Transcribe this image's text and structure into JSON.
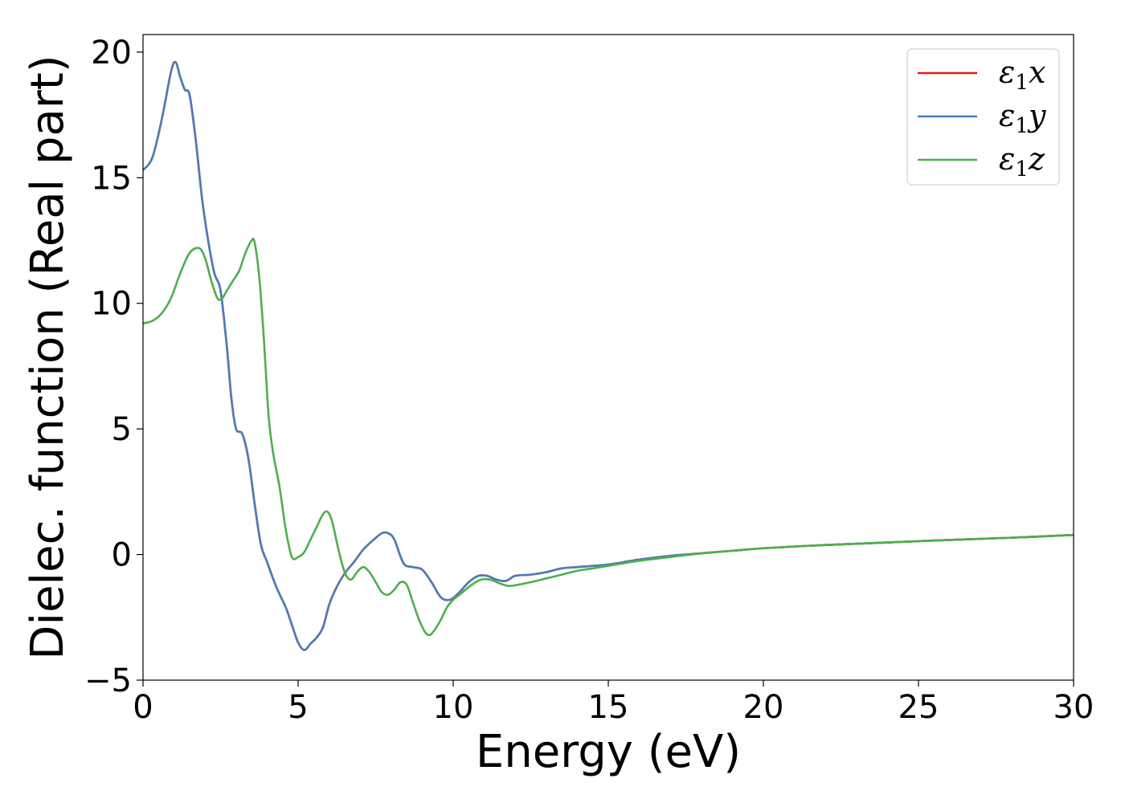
{
  "chart_data": {
    "type": "line",
    "title": "",
    "xlabel": "Energy (eV)",
    "ylabel": "Dielec. function (Real part)",
    "xlim": [
      0,
      30
    ],
    "ylim": [
      -5,
      20.7
    ],
    "xticks": [
      0,
      5,
      10,
      15,
      20,
      25,
      30
    ],
    "xtick_labels": [
      "0",
      "5",
      "10",
      "15",
      "20",
      "25",
      "30"
    ],
    "yticks": [
      -5,
      0,
      5,
      10,
      15,
      20
    ],
    "ytick_labels": [
      "−5",
      "0",
      "5",
      "10",
      "15",
      "20"
    ],
    "grid": false,
    "legend_position": "top-right",
    "series": [
      {
        "name": "ε₁x",
        "legend_base": "ε",
        "legend_sub": "1",
        "legend_var": "x",
        "color": "#e41a1c",
        "x": [
          0,
          0.3,
          0.6,
          0.9,
          1.05,
          1.2,
          1.35,
          1.5,
          1.7,
          1.9,
          2.1,
          2.3,
          2.5,
          2.7,
          2.85,
          3.0,
          3.2,
          3.4,
          3.6,
          3.8,
          4.0,
          4.3,
          4.6,
          4.8,
          5.0,
          5.2,
          5.4,
          5.6,
          5.8,
          6.0,
          6.2,
          6.5,
          6.8,
          7.1,
          7.4,
          7.7,
          7.9,
          8.1,
          8.4,
          8.7,
          9.0,
          9.3,
          9.6,
          9.9,
          10.2,
          10.5,
          10.8,
          11.1,
          11.4,
          11.7,
          12.0,
          12.5,
          13.0,
          13.5,
          14.0,
          14.5,
          15.0,
          16.0,
          17.0,
          18.0,
          19.0,
          20.0,
          22.0,
          24.0,
          26.0,
          28.0,
          30.0
        ],
        "values": [
          15.3,
          15.8,
          17.3,
          19.2,
          19.6,
          19.0,
          18.5,
          18.3,
          16.5,
          14.2,
          12.5,
          11.2,
          10.5,
          8.3,
          6.2,
          5.0,
          4.8,
          3.8,
          2.0,
          0.4,
          -0.3,
          -1.3,
          -2.1,
          -2.8,
          -3.5,
          -3.8,
          -3.55,
          -3.3,
          -2.9,
          -2.0,
          -1.4,
          -0.75,
          -0.3,
          0.2,
          0.55,
          0.85,
          0.85,
          0.6,
          -0.35,
          -0.5,
          -0.6,
          -1.1,
          -1.7,
          -1.8,
          -1.5,
          -1.1,
          -0.85,
          -0.85,
          -1.0,
          -1.05,
          -0.85,
          -0.8,
          -0.7,
          -0.55,
          -0.5,
          -0.45,
          -0.4,
          -0.2,
          -0.05,
          0.05,
          0.15,
          0.25,
          0.38,
          0.48,
          0.58,
          0.67,
          0.78
        ]
      },
      {
        "name": "ε₁y",
        "legend_base": "ε",
        "legend_sub": "1",
        "legend_var": "y",
        "color": "#4a7dbb",
        "x": [
          0,
          0.3,
          0.6,
          0.9,
          1.05,
          1.2,
          1.35,
          1.5,
          1.7,
          1.9,
          2.1,
          2.3,
          2.5,
          2.7,
          2.85,
          3.0,
          3.2,
          3.4,
          3.6,
          3.8,
          4.0,
          4.3,
          4.6,
          4.8,
          5.0,
          5.2,
          5.4,
          5.6,
          5.8,
          6.0,
          6.2,
          6.5,
          6.8,
          7.1,
          7.4,
          7.7,
          7.9,
          8.1,
          8.4,
          8.7,
          9.0,
          9.3,
          9.6,
          9.9,
          10.2,
          10.5,
          10.8,
          11.1,
          11.4,
          11.7,
          12.0,
          12.5,
          13.0,
          13.5,
          14.0,
          14.5,
          15.0,
          16.0,
          17.0,
          18.0,
          19.0,
          20.0,
          22.0,
          24.0,
          26.0,
          28.0,
          30.0
        ],
        "values": [
          15.3,
          15.8,
          17.3,
          19.2,
          19.6,
          19.0,
          18.5,
          18.3,
          16.5,
          14.2,
          12.5,
          11.2,
          10.5,
          8.3,
          6.2,
          5.0,
          4.8,
          3.8,
          2.0,
          0.4,
          -0.3,
          -1.3,
          -2.1,
          -2.8,
          -3.5,
          -3.8,
          -3.55,
          -3.3,
          -2.9,
          -2.0,
          -1.4,
          -0.75,
          -0.3,
          0.2,
          0.55,
          0.85,
          0.85,
          0.6,
          -0.35,
          -0.5,
          -0.6,
          -1.1,
          -1.7,
          -1.8,
          -1.5,
          -1.1,
          -0.85,
          -0.85,
          -1.0,
          -1.05,
          -0.85,
          -0.8,
          -0.7,
          -0.55,
          -0.5,
          -0.45,
          -0.4,
          -0.2,
          -0.05,
          0.05,
          0.15,
          0.25,
          0.38,
          0.48,
          0.58,
          0.67,
          0.78
        ]
      },
      {
        "name": "ε₁z",
        "legend_base": "ε",
        "legend_sub": "1",
        "legend_var": "z",
        "color": "#4daf4a",
        "x": [
          0,
          0.3,
          0.6,
          0.9,
          1.2,
          1.5,
          1.8,
          2.0,
          2.2,
          2.4,
          2.55,
          2.7,
          2.9,
          3.1,
          3.3,
          3.5,
          3.6,
          3.75,
          3.9,
          4.05,
          4.2,
          4.4,
          4.6,
          4.8,
          5.0,
          5.2,
          5.4,
          5.6,
          5.8,
          5.95,
          6.1,
          6.3,
          6.5,
          6.7,
          6.9,
          7.1,
          7.3,
          7.5,
          7.7,
          7.9,
          8.1,
          8.3,
          8.5,
          8.7,
          8.9,
          9.1,
          9.25,
          9.4,
          9.6,
          9.8,
          10.0,
          10.3,
          10.6,
          10.9,
          11.2,
          11.5,
          11.8,
          12.1,
          12.5,
          13.0,
          13.5,
          14.0,
          14.5,
          15.0,
          16.0,
          17.0,
          18.0,
          19.0,
          20.0,
          22.0,
          24.0,
          26.0,
          28.0,
          30.0
        ],
        "values": [
          9.2,
          9.3,
          9.6,
          10.2,
          11.2,
          12.0,
          12.2,
          11.8,
          10.9,
          10.2,
          10.2,
          10.5,
          10.9,
          11.3,
          12.0,
          12.5,
          12.4,
          11.0,
          8.5,
          5.5,
          4.0,
          2.7,
          1.0,
          -0.1,
          -0.1,
          0.1,
          0.6,
          1.1,
          1.6,
          1.7,
          1.3,
          0.2,
          -0.7,
          -1.0,
          -0.7,
          -0.5,
          -0.7,
          -1.1,
          -1.5,
          -1.6,
          -1.4,
          -1.1,
          -1.2,
          -1.9,
          -2.6,
          -3.1,
          -3.2,
          -3.0,
          -2.6,
          -2.1,
          -1.8,
          -1.5,
          -1.2,
          -1.0,
          -1.0,
          -1.15,
          -1.25,
          -1.2,
          -1.1,
          -0.95,
          -0.8,
          -0.65,
          -0.55,
          -0.45,
          -0.25,
          -0.1,
          0.05,
          0.15,
          0.25,
          0.38,
          0.48,
          0.58,
          0.67,
          0.78
        ]
      }
    ]
  }
}
